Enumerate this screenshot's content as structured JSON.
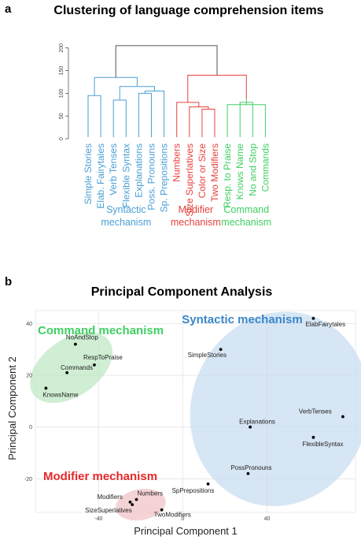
{
  "chart_data": [
    {
      "type": "dendrogram",
      "panel": "a",
      "title": "Clustering of language comprehension items",
      "yticks": [
        0,
        50,
        100,
        150,
        200
      ],
      "ylim": [
        0,
        210
      ],
      "leaves": [
        {
          "label": "Simple Stories",
          "group": "syntactic"
        },
        {
          "label": "Elab. Fairytales",
          "group": "syntactic"
        },
        {
          "label": "Verb Tenses",
          "group": "syntactic"
        },
        {
          "label": "Flexible Syntax",
          "group": "syntactic"
        },
        {
          "label": "Explanations",
          "group": "syntactic"
        },
        {
          "label": "Poss. Pronouns",
          "group": "syntactic"
        },
        {
          "label": "Sp. Prepositions",
          "group": "syntactic"
        },
        {
          "label": "Numbers",
          "group": "modifier"
        },
        {
          "label": "Size Superlatives",
          "group": "modifier"
        },
        {
          "label": "Color or Size",
          "group": "modifier"
        },
        {
          "label": "Two Modifiers",
          "group": "modifier"
        },
        {
          "label": "Resp. to Praise",
          "group": "command"
        },
        {
          "label": "Knows Name",
          "group": "command"
        },
        {
          "label": "No and Stop",
          "group": "command"
        },
        {
          "label": "Commands",
          "group": "command"
        }
      ],
      "merges": [
        {
          "a": [
            11
          ],
          "b": [
            14
          ],
          "height": 75,
          "group": "command"
        },
        {
          "a": [
            12
          ],
          "b": [
            13
          ],
          "height": 80,
          "group": "command"
        },
        {
          "a": [
            11,
            14
          ],
          "b": [
            12,
            13
          ],
          "height": 88,
          "group": "command"
        },
        {
          "a": [
            9
          ],
          "b": [
            10
          ],
          "height": 65,
          "group": "modifier"
        },
        {
          "a": [
            8
          ],
          "b": [
            9,
            10
          ],
          "height": 70,
          "group": "modifier"
        },
        {
          "a": [
            7
          ],
          "b": [
            8,
            9,
            10
          ],
          "height": 80,
          "group": "modifier"
        },
        {
          "a": [
            0
          ],
          "b": [
            1
          ],
          "height": 95,
          "group": "syntactic"
        },
        {
          "a": [
            2
          ],
          "b": [
            3
          ],
          "height": 85,
          "group": "syntactic"
        },
        {
          "a": [
            4
          ],
          "b": [
            5
          ],
          "height": 100,
          "group": "syntactic"
        },
        {
          "a": [
            4,
            5
          ],
          "b": [
            6
          ],
          "height": 105,
          "group": "syntactic"
        },
        {
          "a": [
            2,
            3
          ],
          "b": [
            4,
            5,
            6
          ],
          "height": 115,
          "group": "syntactic"
        },
        {
          "a": [
            0,
            1
          ],
          "b": [
            2,
            3,
            4,
            5,
            6
          ],
          "height": 135,
          "group": "syntactic"
        },
        {
          "a": [
            7,
            8,
            9,
            10
          ],
          "b": [
            11,
            12,
            13,
            14
          ],
          "height": 140,
          "group": "other"
        },
        {
          "a": [
            0,
            1,
            2,
            3,
            4,
            5,
            6
          ],
          "b": [
            7,
            8,
            9,
            10,
            11,
            12,
            13,
            14
          ],
          "height": 205,
          "group": "root"
        }
      ],
      "mechanisms": [
        {
          "key": "syntactic",
          "lines": [
            "Syntactic",
            "mechanism"
          ]
        },
        {
          "key": "modifier",
          "lines": [
            "Modifier",
            "mechanism"
          ]
        },
        {
          "key": "command",
          "lines": [
            "Command",
            "mechanism"
          ]
        }
      ],
      "colors": {
        "syntactic": "#4a9fd6",
        "modifier": "#e8413c",
        "command": "#3fcf62",
        "other": "#e8413c",
        "root": "#555555"
      }
    },
    {
      "type": "scatter",
      "panel": "b",
      "title": "Principal Component Analysis",
      "xlabel": "Principal Component 1",
      "ylabel": "Principal Component 2",
      "xlim": [
        -70,
        82
      ],
      "ylim": [
        -33,
        45
      ],
      "xticks": [
        -40,
        0,
        40
      ],
      "yticks": [
        -20,
        0,
        20,
        40
      ],
      "points": [
        {
          "label": "NoAndStop",
          "x": -51,
          "y": 32,
          "group": "command"
        },
        {
          "label": "RespToPraise",
          "x": -42,
          "y": 24,
          "group": "command"
        },
        {
          "label": "Commands",
          "x": -55,
          "y": 21,
          "group": "command"
        },
        {
          "label": "KnowsName",
          "x": -65,
          "y": 15,
          "group": "command"
        },
        {
          "label": "ElabFairytales",
          "x": 62,
          "y": 42,
          "group": "syntactic"
        },
        {
          "label": "SimpleStories",
          "x": 18,
          "y": 30,
          "group": "syntactic"
        },
        {
          "label": "Explanations",
          "x": 32,
          "y": 0,
          "group": "syntactic"
        },
        {
          "label": "VerbTenses",
          "x": 76,
          "y": 4,
          "group": "syntactic"
        },
        {
          "label": "FlexibleSyntax",
          "x": 62,
          "y": -4,
          "group": "syntactic"
        },
        {
          "label": "PossPronouns",
          "x": 31,
          "y": -18,
          "group": "syntactic"
        },
        {
          "label": "SpPrepositions",
          "x": 12,
          "y": -22,
          "group": "syntactic"
        },
        {
          "label": "Modifiers",
          "x": -25,
          "y": -29,
          "group": "modifier"
        },
        {
          "label": "Numbers",
          "x": -22,
          "y": -28,
          "group": "modifier"
        },
        {
          "label": "SizeSuperlatives",
          "x": -24,
          "y": -30,
          "group": "modifier"
        },
        {
          "label": "TwoModifiers",
          "x": -10,
          "y": -32,
          "group": "modifier"
        }
      ],
      "ellipses": [
        {
          "group": "command",
          "cx": -53,
          "cy": 23,
          "rx": 22,
          "ry": 11,
          "angle": -35,
          "color": "#bfe8c4"
        },
        {
          "group": "syntactic",
          "cx": 46,
          "cy": 7,
          "rx": 42,
          "ry": 38,
          "angle": 20,
          "color": "#c9def0"
        },
        {
          "group": "modifier",
          "cx": -20,
          "cy": -30,
          "rx": 12,
          "ry": 6,
          "angle": -10,
          "color": "#f0c4c8"
        }
      ],
      "group_labels": [
        {
          "text": "Command mechanism",
          "group": "command"
        },
        {
          "text": "Syntactic mechanism",
          "group": "syntactic"
        },
        {
          "text": "Modifier mechanism",
          "group": "modifier"
        }
      ],
      "colors": {
        "command": "#3fcf62",
        "syntactic": "#3a86c8",
        "modifier": "#e8282a"
      }
    }
  ]
}
